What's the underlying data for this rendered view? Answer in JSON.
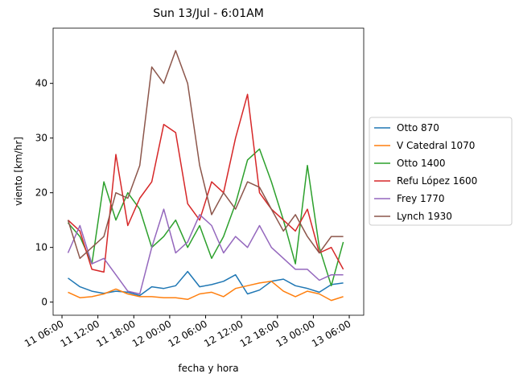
{
  "chart_data": {
    "type": "line",
    "title": "Sun 13/Jul - 6:01AM",
    "xlabel": "fecha y hora",
    "ylabel": "viento [km/hr]",
    "x": [
      "11 07:00",
      "11 09:00",
      "11 11:00",
      "11 13:00",
      "11 15:00",
      "11 17:00",
      "11 19:00",
      "11 21:00",
      "11 23:00",
      "12 01:00",
      "12 03:00",
      "12 05:00",
      "12 07:00",
      "12 09:00",
      "12 11:00",
      "12 13:00",
      "12 15:00",
      "12 17:00",
      "12 19:00",
      "12 21:00",
      "12 23:00",
      "13 01:00",
      "13 03:00",
      "13 05:00"
    ],
    "series": [
      {
        "name": "Otto 870",
        "color": "#1f77b4",
        "values": [
          4.4,
          2.8,
          2.0,
          1.6,
          2.0,
          1.8,
          1.2,
          2.8,
          2.5,
          3.0,
          5.6,
          2.8,
          3.2,
          3.8,
          5.0,
          1.5,
          2.2,
          3.8,
          4.2,
          3.0,
          2.5,
          1.8,
          3.2,
          3.5
        ]
      },
      {
        "name": "V Catedral 1070",
        "color": "#ff7f0e",
        "values": [
          1.8,
          0.8,
          1.0,
          1.5,
          2.4,
          1.5,
          1.0,
          1.0,
          0.8,
          0.8,
          0.5,
          1.5,
          1.8,
          1.0,
          2.5,
          3.0,
          3.5,
          3.8,
          2.0,
          1.0,
          2.0,
          1.5,
          0.3,
          1.0
        ]
      },
      {
        "name": "Otto 1400",
        "color": "#2ca02c",
        "values": [
          14.5,
          12,
          7,
          22,
          15,
          20,
          17,
          10,
          12,
          15,
          10,
          14,
          8,
          12,
          18,
          26,
          28,
          22,
          15,
          7,
          25,
          10,
          3,
          11
        ]
      },
      {
        "name": "Refu López 1600",
        "color": "#d62728",
        "values": [
          15,
          13,
          6,
          5.5,
          27,
          14,
          19,
          22,
          32.5,
          31,
          18,
          15,
          22,
          20,
          30,
          38,
          20,
          17,
          15,
          13,
          17,
          9,
          10,
          6
        ]
      },
      {
        "name": "Frey 1770",
        "color": "#9467bd",
        "values": [
          9,
          14,
          7,
          8,
          5,
          2,
          1.5,
          10,
          17,
          9,
          11,
          16,
          14,
          9,
          12,
          10,
          14,
          10,
          8,
          6,
          6,
          4,
          5,
          5
        ]
      },
      {
        "name": "Lynch 1930",
        "color": "#8c564b",
        "values": [
          15,
          8,
          10,
          12,
          20,
          19,
          25,
          43,
          40,
          46,
          40,
          25,
          16,
          20,
          17,
          22,
          21,
          17,
          13,
          16,
          12,
          9,
          12,
          12
        ]
      }
    ],
    "xlim": [
      "11 04:31",
      "13 08:25"
    ],
    "xticks": [
      "11 06:00",
      "11 12:00",
      "11 18:00",
      "12 00:00",
      "12 06:00",
      "12 12:00",
      "12 18:00",
      "13 00:00",
      "13 06:00"
    ],
    "ylim": [
      -2.4,
      50.1
    ],
    "yticks": [
      0,
      10,
      20,
      30,
      40
    ],
    "legend": "right"
  }
}
